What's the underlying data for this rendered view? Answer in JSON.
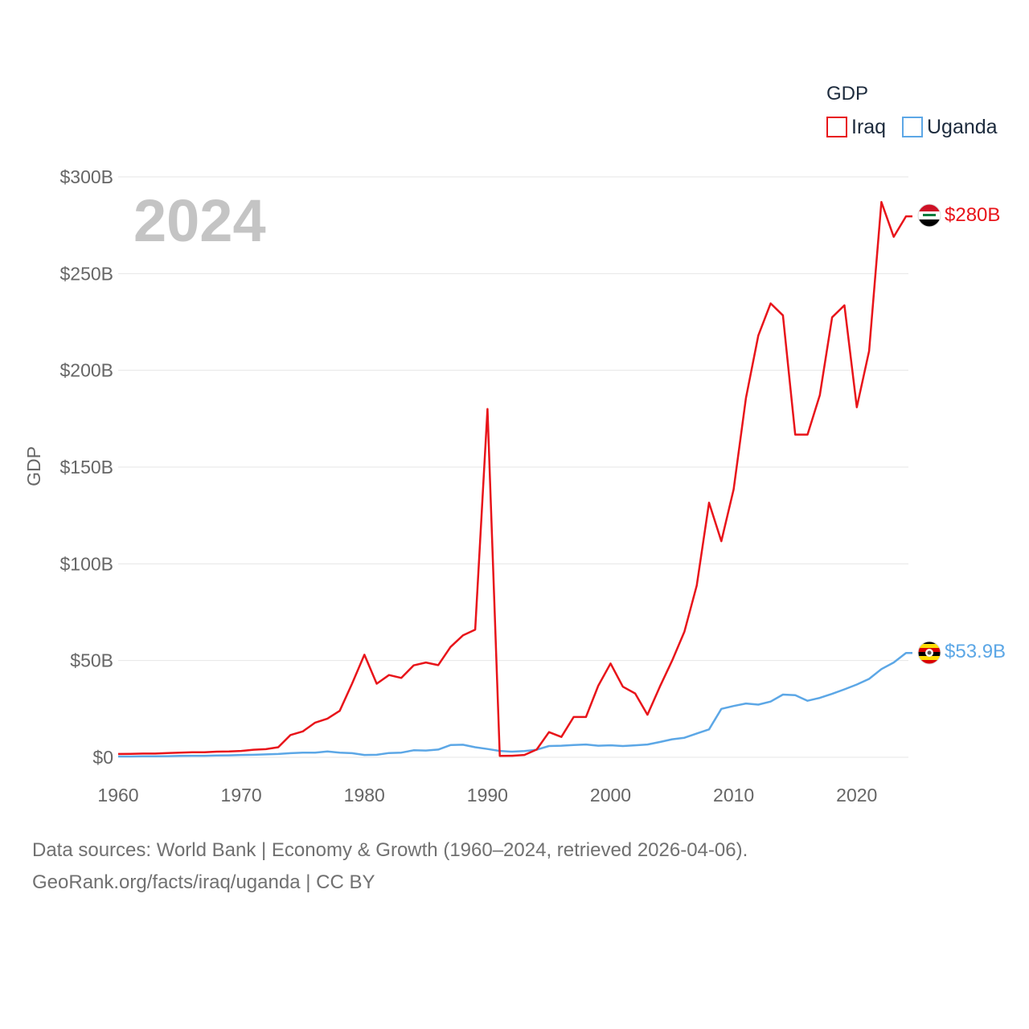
{
  "chart_data": {
    "type": "line",
    "title": "",
    "year_label": "2024",
    "ylabel": "GDP",
    "xlabel": "",
    "xlim": [
      1960,
      2024
    ],
    "ylim": [
      0,
      300
    ],
    "y_unit": "billion USD",
    "y_ticks": [
      {
        "value": 0,
        "label": "$0"
      },
      {
        "value": 50,
        "label": "$50B"
      },
      {
        "value": 100,
        "label": "$100B"
      },
      {
        "value": 150,
        "label": "$150B"
      },
      {
        "value": 200,
        "label": "$200B"
      },
      {
        "value": 250,
        "label": "$250B"
      },
      {
        "value": 300,
        "label": "$300B"
      }
    ],
    "x_ticks": [
      {
        "value": 1960,
        "label": "1960"
      },
      {
        "value": 1970,
        "label": "1970"
      },
      {
        "value": 1980,
        "label": "1980"
      },
      {
        "value": 1990,
        "label": "1990"
      },
      {
        "value": 2000,
        "label": "2000"
      },
      {
        "value": 2010,
        "label": "2010"
      },
      {
        "value": 2020,
        "label": "2020"
      }
    ],
    "grid": true,
    "legend": {
      "title": "GDP",
      "position": "top-right"
    },
    "x": [
      1960,
      1961,
      1962,
      1963,
      1964,
      1965,
      1966,
      1967,
      1968,
      1969,
      1970,
      1971,
      1972,
      1973,
      1974,
      1975,
      1976,
      1977,
      1978,
      1979,
      1980,
      1981,
      1982,
      1983,
      1984,
      1985,
      1986,
      1987,
      1988,
      1989,
      1990,
      1991,
      1992,
      1993,
      1994,
      1995,
      1996,
      1997,
      1998,
      1999,
      2000,
      2001,
      2002,
      2003,
      2004,
      2005,
      2006,
      2007,
      2008,
      2009,
      2010,
      2011,
      2012,
      2013,
      2014,
      2015,
      2016,
      2017,
      2018,
      2019,
      2020,
      2021,
      2022,
      2023,
      2024
    ],
    "series": [
      {
        "name": "Iraq",
        "color": "#e8141a",
        "end_label": "$280B",
        "values": [
          1.7,
          1.8,
          1.9,
          1.9,
          2.2,
          2.4,
          2.6,
          2.6,
          2.9,
          3.0,
          3.3,
          3.9,
          4.2,
          5.2,
          11.5,
          13.4,
          17.9,
          20.0,
          24.0,
          38.0,
          53.0,
          38.0,
          42.5,
          41.0,
          47.5,
          49.0,
          47.6,
          57.0,
          63.0,
          66.0,
          180.0,
          0.7,
          0.8,
          1.2,
          4.0,
          13.0,
          10.5,
          20.8,
          20.8,
          37.0,
          48.5,
          36.5,
          33.0,
          22.0,
          36.5,
          50.0,
          65.0,
          88.8,
          131.6,
          111.7,
          138.5,
          185.7,
          218.0,
          234.6,
          228.4,
          166.8,
          166.8,
          187.2,
          227.4,
          233.6,
          180.9,
          210.0,
          287.0,
          269.0,
          279.6
        ]
      },
      {
        "name": "Uganda",
        "color": "#5ca7e6",
        "end_label": "$53.9B",
        "values": [
          0.4,
          0.4,
          0.5,
          0.5,
          0.6,
          0.7,
          0.8,
          0.8,
          0.9,
          1.0,
          1.2,
          1.3,
          1.5,
          1.7,
          2.1,
          2.4,
          2.4,
          3.0,
          2.4,
          2.1,
          1.2,
          1.3,
          2.2,
          2.4,
          3.6,
          3.5,
          4.0,
          6.3,
          6.5,
          5.2,
          4.3,
          3.3,
          2.9,
          3.2,
          3.9,
          5.8,
          6.0,
          6.3,
          6.6,
          6.0,
          6.2,
          5.8,
          6.2,
          6.6,
          7.9,
          9.3,
          10.1,
          12.3,
          14.4,
          25.0,
          26.5,
          27.8,
          27.2,
          28.8,
          32.4,
          32.1,
          29.2,
          30.7,
          32.8,
          35.1,
          37.6,
          40.5,
          45.6,
          49.0,
          53.9
        ]
      }
    ]
  },
  "footer": {
    "line1": "Data sources: World Bank | Economy & Growth (1960–2024, retrieved 2026-04-06).",
    "line2": "GeoRank.org/facts/iraq/uganda | CC BY"
  }
}
